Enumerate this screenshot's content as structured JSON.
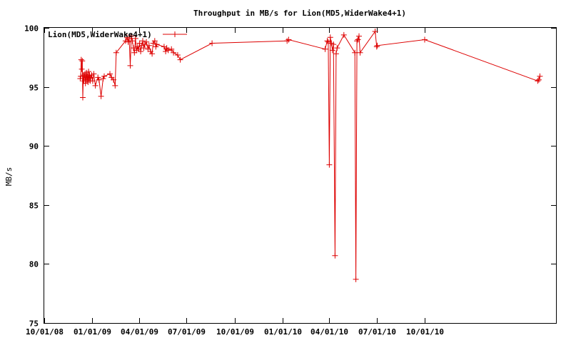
{
  "chart_data": {
    "type": "line",
    "title": "Throughput in MB/s for Lion(MD5,WiderWake4+1)",
    "xlabel": "",
    "ylabel": "MB/s",
    "x_is_date": true,
    "xlim": [
      "2008-10-01",
      "2011-06-10"
    ],
    "ylim": [
      75,
      100
    ],
    "y_ticks": [
      75,
      80,
      85,
      90,
      95,
      100
    ],
    "x_ticks": [
      {
        "date": "2008-10-01",
        "label": "10/01/08"
      },
      {
        "date": "2009-01-01",
        "label": "01/01/09"
      },
      {
        "date": "2009-04-01",
        "label": "04/01/09"
      },
      {
        "date": "2009-07-01",
        "label": "07/01/09"
      },
      {
        "date": "2009-10-01",
        "label": "10/01/09"
      },
      {
        "date": "2010-01-01",
        "label": "01/01/10"
      },
      {
        "date": "2010-04-01",
        "label": "04/01/10"
      },
      {
        "date": "2010-07-01",
        "label": "07/01/10"
      },
      {
        "date": "2010-10-01",
        "label": "10/01/10"
      }
    ],
    "grid": false,
    "legend_position": "top-left",
    "series": [
      {
        "name": "Lion(MD5,WiderWake4+1)",
        "color": "#dd0000",
        "points": [
          [
            "2008-12-09",
            95.7
          ],
          [
            "2008-12-10",
            95.9
          ],
          [
            "2008-12-11",
            97.3
          ],
          [
            "2008-12-12",
            96.5
          ],
          [
            "2008-12-13",
            97.2
          ],
          [
            "2008-12-14",
            94.1
          ],
          [
            "2008-12-15",
            96.0
          ],
          [
            "2008-12-16",
            95.5
          ],
          [
            "2008-12-17",
            95.9
          ],
          [
            "2008-12-18",
            96.1
          ],
          [
            "2008-12-19",
            95.3
          ],
          [
            "2008-12-20",
            95.8
          ],
          [
            "2008-12-21",
            96.2
          ],
          [
            "2008-12-22",
            95.6
          ],
          [
            "2008-12-23",
            95.9
          ],
          [
            "2008-12-24",
            95.4
          ],
          [
            "2008-12-25",
            96.3
          ],
          [
            "2008-12-26",
            95.7
          ],
          [
            "2008-12-27",
            96.0
          ],
          [
            "2008-12-28",
            95.5
          ],
          [
            "2008-12-29",
            95.8
          ],
          [
            "2008-12-31",
            96.0
          ],
          [
            "2009-01-02",
            95.5
          ],
          [
            "2009-01-04",
            96.1
          ],
          [
            "2009-01-07",
            95.1
          ],
          [
            "2009-01-12",
            95.8
          ],
          [
            "2009-01-14",
            95.6
          ],
          [
            "2009-01-18",
            94.2
          ],
          [
            "2009-01-22",
            95.7
          ],
          [
            "2009-01-24",
            95.9
          ],
          [
            "2009-02-04",
            96.1
          ],
          [
            "2009-02-07",
            95.8
          ],
          [
            "2009-02-11",
            95.6
          ],
          [
            "2009-02-14",
            95.1
          ],
          [
            "2009-02-16",
            97.9
          ],
          [
            "2009-03-06",
            98.9
          ],
          [
            "2009-03-09",
            99.2
          ],
          [
            "2009-03-11",
            98.8
          ],
          [
            "2009-03-13",
            99.1
          ],
          [
            "2009-03-15",
            96.8
          ],
          [
            "2009-03-17",
            99.3
          ],
          [
            "2009-03-19",
            98.9
          ],
          [
            "2009-03-21",
            98.3
          ],
          [
            "2009-03-23",
            97.9
          ],
          [
            "2009-03-25",
            99.1
          ],
          [
            "2009-03-27",
            98.1
          ],
          [
            "2009-03-29",
            98.4
          ],
          [
            "2009-03-31",
            98.2
          ],
          [
            "2009-04-02",
            98.7
          ],
          [
            "2009-04-04",
            98.0
          ],
          [
            "2009-04-06",
            98.5
          ],
          [
            "2009-04-08",
            98.9
          ],
          [
            "2009-04-10",
            98.3
          ],
          [
            "2009-04-12",
            98.6
          ],
          [
            "2009-04-15",
            98.8
          ],
          [
            "2009-04-18",
            98.2
          ],
          [
            "2009-04-20",
            98.5
          ],
          [
            "2009-04-23",
            98.0
          ],
          [
            "2009-04-26",
            97.8
          ],
          [
            "2009-04-28",
            98.7
          ],
          [
            "2009-05-01",
            98.9
          ],
          [
            "2009-05-03",
            98.4
          ],
          [
            "2009-05-05",
            98.6
          ],
          [
            "2009-05-19",
            98.4
          ],
          [
            "2009-05-22",
            98.0
          ],
          [
            "2009-05-24",
            98.3
          ],
          [
            "2009-05-27",
            98.1
          ],
          [
            "2009-06-02",
            98.2
          ],
          [
            "2009-06-06",
            97.9
          ],
          [
            "2009-06-14",
            97.7
          ],
          [
            "2009-06-19",
            97.3
          ],
          [
            "2009-08-19",
            98.7
          ],
          [
            "2010-01-10",
            98.9
          ],
          [
            "2010-01-13",
            99.0
          ],
          [
            "2010-03-24",
            98.2
          ],
          [
            "2010-03-28",
            98.9
          ],
          [
            "2010-03-30",
            98.8
          ],
          [
            "2010-04-01",
            88.4
          ],
          [
            "2010-04-03",
            99.2
          ],
          [
            "2010-04-05",
            98.7
          ],
          [
            "2010-04-07",
            98.1
          ],
          [
            "2010-04-09",
            98.6
          ],
          [
            "2010-04-12",
            80.7
          ],
          [
            "2010-04-14",
            97.8
          ],
          [
            "2010-04-16",
            98.3
          ],
          [
            "2010-04-29",
            99.4
          ],
          [
            "2010-05-20",
            97.9
          ],
          [
            "2010-05-22",
            78.7
          ],
          [
            "2010-05-24",
            98.9
          ],
          [
            "2010-05-26",
            99.0
          ],
          [
            "2010-05-28",
            99.3
          ],
          [
            "2010-05-30",
            97.9
          ],
          [
            "2010-06-28",
            99.7
          ],
          [
            "2010-07-01",
            98.4
          ],
          [
            "2010-07-02",
            98.5
          ],
          [
            "2010-10-01",
            99.0
          ],
          [
            "2011-05-06",
            95.5
          ],
          [
            "2011-05-08",
            95.6
          ],
          [
            "2011-05-10",
            95.9
          ]
        ]
      }
    ]
  }
}
